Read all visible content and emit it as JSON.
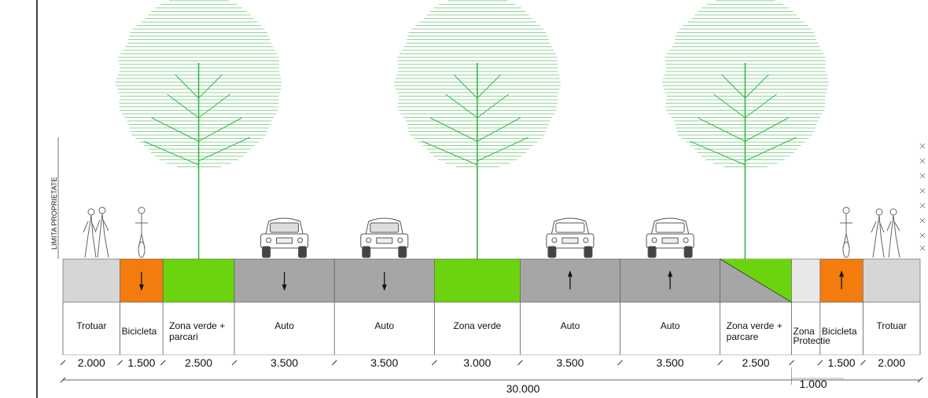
{
  "property_limit_label": "LIMITA PROPRIETATE",
  "total_width": "30.000",
  "protection_dimension": "1.000",
  "colors": {
    "sidewalk": "#d6d6d6",
    "bike": "#f47b0e",
    "green": "#6bd40f",
    "road": "#a6a6a6",
    "protection": "#e8e8e8",
    "tree": "#39b54a"
  },
  "segments": [
    {
      "type": "sidewalk",
      "label": [
        "Trotuar"
      ],
      "width": "2.000"
    },
    {
      "type": "bike",
      "label": [
        "Bicicleta"
      ],
      "width": "1.500",
      "arrow": "down"
    },
    {
      "type": "green",
      "label": [
        "Zona verde +",
        "parcari"
      ],
      "width": "2.500"
    },
    {
      "type": "road",
      "label": [
        "Auto"
      ],
      "width": "3.500",
      "arrow": "down"
    },
    {
      "type": "road",
      "label": [
        "Auto"
      ],
      "width": "3.500",
      "arrow": "down"
    },
    {
      "type": "green",
      "label": [
        "Zona verde"
      ],
      "width": "3.000"
    },
    {
      "type": "road",
      "label": [
        "Auto"
      ],
      "width": "3.500",
      "arrow": "up"
    },
    {
      "type": "road",
      "label": [
        "Auto"
      ],
      "width": "3.500",
      "arrow": "up"
    },
    {
      "type": "green-split",
      "label": [
        "Zona verde +",
        "parcare"
      ],
      "width": "2.500"
    },
    {
      "type": "protection",
      "label": [
        "Zona",
        "Protectie"
      ],
      "width": "1.000"
    },
    {
      "type": "bike",
      "label": [
        "Bicicleta"
      ],
      "width": "1.500",
      "arrow": "up"
    },
    {
      "type": "sidewalk",
      "label": [
        "Trotuar"
      ],
      "width": "2.000"
    }
  ]
}
